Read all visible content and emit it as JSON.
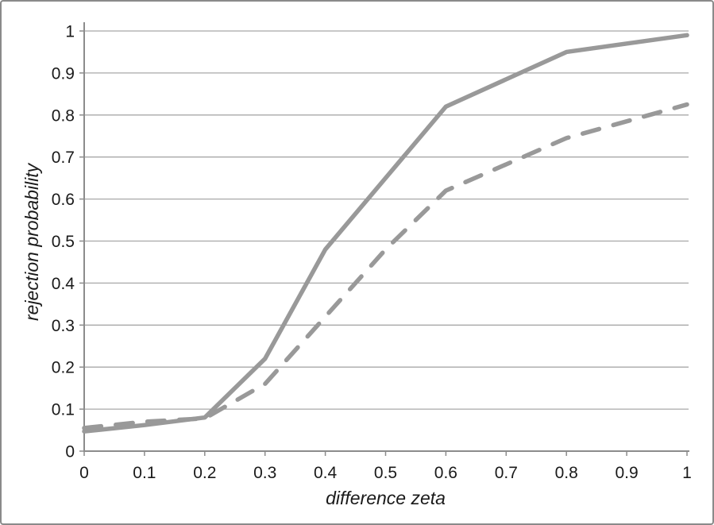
{
  "window": {
    "background": "#ffffff",
    "border_color": "#8a8a8a"
  },
  "chart_data": {
    "type": "line",
    "title": "",
    "xlabel": "difference zeta",
    "ylabel": "rejection probability",
    "xlim": [
      0,
      1
    ],
    "ylim": [
      0,
      1
    ],
    "grid": "horizontal",
    "legend": "none",
    "xticks": {
      "values": [
        0,
        0.1,
        0.2,
        0.3,
        0.4,
        0.5,
        0.6,
        0.7,
        0.8,
        0.9,
        1
      ],
      "labels": [
        "0",
        "0.1",
        "0.2",
        "0.3",
        "0.4",
        "0.5",
        "0.6",
        "0.7",
        "0.8",
        "0.9",
        "1"
      ]
    },
    "yticks": {
      "values": [
        0,
        0.1,
        0.2,
        0.3,
        0.4,
        0.5,
        0.6,
        0.7,
        0.8,
        0.9,
        1
      ],
      "labels": [
        "0",
        "0.1",
        "0.2",
        "0.3",
        "0.4",
        "0.5",
        "0.6",
        "0.7",
        "0.8",
        "0.9",
        "1"
      ]
    },
    "x": [
      0,
      0.1,
      0.2,
      0.3,
      0.4,
      0.5,
      0.6,
      0.8,
      1.0
    ],
    "series": [
      {
        "name": "solid-line",
        "style": "solid",
        "color": "#999999",
        "width": 5.5,
        "values": [
          0.047,
          0.062,
          0.08,
          0.22,
          0.48,
          0.65,
          0.82,
          0.95,
          0.99
        ]
      },
      {
        "name": "dashed-line",
        "style": "dashed",
        "color": "#999999",
        "width": 5.5,
        "values": [
          0.055,
          0.07,
          0.078,
          0.16,
          0.32,
          0.48,
          0.62,
          0.745,
          0.825
        ]
      }
    ],
    "colors": {
      "gridline": "#a8a8a8",
      "axis": "#8c8c8c",
      "text": "#1a1a1a"
    }
  }
}
